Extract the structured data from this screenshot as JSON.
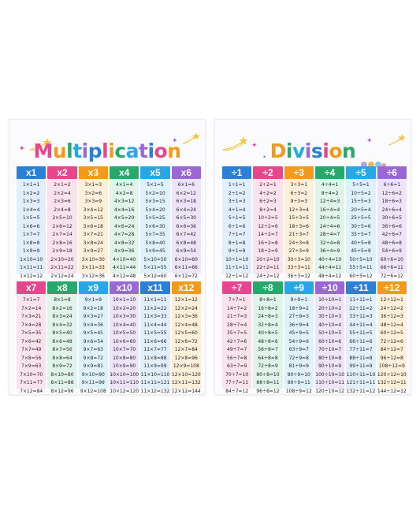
{
  "colors": [
    "#2a7fd6",
    "#e7458c",
    "#f49a1a",
    "#27a96b",
    "#27a7e6",
    "#9a67d6"
  ],
  "tints": [
    "#e1eefb",
    "#fbe3ee",
    "#fdefd9",
    "#e0f4ea",
    "#dff2fb",
    "#eee4fa"
  ],
  "colors2": [
    "#e7458c",
    "#27a96b",
    "#27a7e6",
    "#9a67d6",
    "#2a7fd6",
    "#f49a1a"
  ],
  "tints2": [
    "#fbe3ee",
    "#e0f4ea",
    "#dff2fb",
    "#eee4fa",
    "#e1eefb",
    "#fdefd9"
  ],
  "title_colors": [
    "#e7458c",
    "#f49a1a",
    "#27a96b",
    "#27a7e6",
    "#9a67d6",
    "#2a7fd6",
    "#e7458c",
    "#f49a1a",
    "#27a96b",
    "#27a7e6",
    "#9a67d6",
    "#2a7fd6",
    "#e7458c",
    "#f49a1a"
  ],
  "multiplication": {
    "title": "Multiplication",
    "top_headers": [
      "x1",
      "x2",
      "x3",
      "x4",
      "x5",
      "x6"
    ],
    "bottom_headers": [
      "x7",
      "x8",
      "x9",
      "x10",
      "x11",
      "x12"
    ],
    "top_columns": [
      [
        "1×1=1",
        "1×2=2",
        "1×3=3",
        "1×4=4",
        "1×5=5",
        "1×6=6",
        "1×7=7",
        "1×8=8",
        "1×9=9",
        "1×10=10",
        "1×11=11",
        "1×12=12"
      ],
      [
        "2×1=2",
        "2×2=4",
        "2×3=6",
        "2×4=8",
        "2×5=10",
        "2×6=12",
        "2×7=14",
        "2×8=16",
        "2×9=18",
        "2×10=20",
        "2×11=22",
        "2×12=24"
      ],
      [
        "3×1=3",
        "3×2=6",
        "3×3=9",
        "3×4=12",
        "3×5=15",
        "3×6=18",
        "3×7=21",
        "3×8=24",
        "3×9=27",
        "3×10=30",
        "3×11=33",
        "3×12=36"
      ],
      [
        "4×1=4",
        "4×2=8",
        "4×3=12",
        "4×4=16",
        "4×5=20",
        "4×6=24",
        "4×7=28",
        "4×8=32",
        "4×9=36",
        "4×10=40",
        "4×11=44",
        "4×12=48"
      ],
      [
        "5×1=5",
        "5×2=10",
        "5×3=15",
        "5×4=20",
        "5×5=25",
        "5×6=30",
        "5×7=35",
        "5×8=40",
        "5×9=45",
        "5×10=50",
        "5×11=55",
        "5×12=60"
      ],
      [
        "6×1=6",
        "6×2=12",
        "6×3=18",
        "6×4=24",
        "6×5=30",
        "6×6=36",
        "6×7=42",
        "6×8=48",
        "6×9=54",
        "6×10=60",
        "6×11=66",
        "6×12=72"
      ]
    ],
    "bottom_columns": [
      [
        "7×1=7",
        "7×2=14",
        "7×3=21",
        "7×4=28",
        "7×5=35",
        "7×6=42",
        "7×7=49",
        "7×8=56",
        "7×9=63",
        "7×10=70",
        "7×11=77",
        "7×12=84"
      ],
      [
        "8×1=8",
        "8×2=16",
        "8×3=24",
        "8×4=32",
        "8×5=40",
        "8×6=48",
        "8×7=56",
        "8×8=64",
        "8×9=72",
        "8×10=80",
        "8×11=88",
        "8×12=96"
      ],
      [
        "9×1=9",
        "9×2=18",
        "9×3=27",
        "9×4=36",
        "9×5=45",
        "9×6=54",
        "9×7=63",
        "9×8=72",
        "9×9=81",
        "9×10=90",
        "9×11=99",
        "9×12=108"
      ],
      [
        "10×1=10",
        "10×2=20",
        "10×3=30",
        "10×4=40",
        "10×5=50",
        "10×6=60",
        "10×7=70",
        "10×8=80",
        "10×9=90",
        "10×10=100",
        "10×11=110",
        "10×12=120"
      ],
      [
        "11×1=11",
        "11×2=22",
        "11×3=33",
        "11×4=44",
        "11×5=55",
        "11×6=66",
        "11×7=77",
        "11×8=88",
        "11×9=99",
        "11×10=110",
        "11×11=121",
        "11×12=132"
      ],
      [
        "12×1=12",
        "12×2=24",
        "12×3=36",
        "12×4=48",
        "12×5=60",
        "12×6=72",
        "12×7=84",
        "12×8=96",
        "12×9=108",
        "12×10=120",
        "12×11=132",
        "12×12=144"
      ]
    ]
  },
  "division": {
    "title": "Division",
    "top_headers": [
      "÷1",
      "÷2",
      "÷3",
      "÷4",
      "÷5",
      "÷6"
    ],
    "bottom_headers": [
      "÷7",
      "÷8",
      "÷9",
      "÷10",
      "÷11",
      "÷12"
    ],
    "top_columns": [
      [
        "1÷1=1",
        "2÷1=2",
        "3÷1=3",
        "4÷1=4",
        "5÷1=5",
        "6÷1=6",
        "7÷1=7",
        "8÷1=8",
        "9÷1=9",
        "10÷1=10",
        "11÷1=11",
        "12÷1=12"
      ],
      [
        "2÷2=1",
        "4÷2=2",
        "6÷2=3",
        "8÷2=4",
        "10÷2=5",
        "12÷2=6",
        "14÷2=7",
        "16÷2=8",
        "18÷2=9",
        "20÷2=10",
        "22÷2=11",
        "24÷2=12"
      ],
      [
        "3÷3=1",
        "6÷3=2",
        "9÷3=3",
        "12÷3=4",
        "15÷3=5",
        "18÷3=6",
        "21÷3=7",
        "24÷3=8",
        "27÷3=9",
        "30÷3=10",
        "33÷3=11",
        "36÷3=12"
      ],
      [
        "4÷4=1",
        "8÷4=2",
        "12÷4=3",
        "16÷4=4",
        "20÷4=5",
        "24÷4=6",
        "28÷4=7",
        "32÷4=8",
        "36÷4=9",
        "40÷4=10",
        "44÷4=11",
        "48÷4=12"
      ],
      [
        "5÷5=1",
        "10÷5=2",
        "15÷5=3",
        "20÷5=4",
        "25÷5=5",
        "30÷5=6",
        "35÷5=7",
        "40÷5=8",
        "45÷5=9",
        "50÷5=10",
        "55÷5=11",
        "60÷5=12"
      ],
      [
        "6÷6=1",
        "12÷6=2",
        "18÷6=3",
        "24÷6=4",
        "30÷6=5",
        "36÷6=6",
        "42÷6=7",
        "48÷6=8",
        "54÷6=9",
        "60÷6=10",
        "66÷6=11",
        "72÷6=12"
      ]
    ],
    "bottom_columns": [
      [
        "7÷7=1",
        "14÷7=2",
        "21÷7=3",
        "28÷7=4",
        "35÷7=5",
        "42÷7=6",
        "49÷7=7",
        "56÷7=8",
        "63÷7=9",
        "70÷7=10",
        "77÷7=11",
        "84÷7=12"
      ],
      [
        "8÷8=1",
        "16÷8=2",
        "24÷8=3",
        "32÷8=4",
        "40÷8=5",
        "48÷8=6",
        "56÷8=7",
        "64÷8=8",
        "72÷8=9",
        "80÷8=10",
        "88÷8=11",
        "96÷8=12"
      ],
      [
        "9÷9=1",
        "18÷9=2",
        "27÷9=3",
        "36÷9=4",
        "45÷9=5",
        "54÷9=6",
        "63÷9=7",
        "72÷9=8",
        "81÷9=9",
        "90÷9=10",
        "99÷9=11",
        "108÷9=12"
      ],
      [
        "10÷10=1",
        "20÷10=2",
        "30÷10=3",
        "40÷10=4",
        "50÷10=5",
        "60÷10=6",
        "70÷10=7",
        "80÷10=8",
        "90÷10=9",
        "100÷10=10",
        "110÷10=11",
        "120÷10=12"
      ],
      [
        "11÷11=1",
        "22÷11=2",
        "33÷11=3",
        "44÷11=4",
        "55÷11=5",
        "66÷11=6",
        "77÷11=7",
        "88÷11=8",
        "99÷11=9",
        "110÷11=10",
        "121÷11=11",
        "132÷11=12"
      ],
      [
        "12÷12=1",
        "24÷12=2",
        "36÷12=3",
        "48÷12=4",
        "60÷12=5",
        "72÷12=6",
        "84÷12=7",
        "96÷12=8",
        "108÷12=9",
        "120÷12=10",
        "132÷12=11",
        "144÷12=12"
      ]
    ]
  },
  "decorations": [
    "star-icon",
    "shooting-star-icon",
    "sparkle-icon",
    "animals-illustration"
  ]
}
